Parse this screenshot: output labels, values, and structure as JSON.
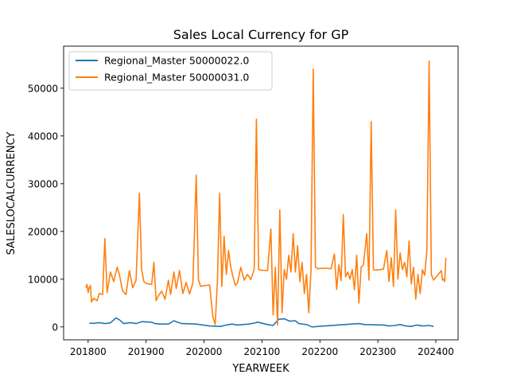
{
  "chart_data": {
    "type": "line",
    "title": "Sales Local Currency for GP",
    "xlabel": "YEARWEEK",
    "ylabel": "SALESLOCALCURRENCY",
    "xlim": [
      201730,
      202420
    ],
    "ylim": [
      -2700,
      58800
    ],
    "x_ticks": [
      201800,
      201900,
      202000,
      202100,
      202200,
      202300,
      202400
    ],
    "y_ticks": [
      0,
      10000,
      20000,
      30000,
      40000,
      50000
    ],
    "grid": false,
    "legend_position": "top-left",
    "series": [
      {
        "name": "Regional_Master 50000022.0",
        "color": "#1f77b4",
        "points": [
          [
            201801,
            800
          ],
          [
            201805,
            750
          ],
          [
            201810,
            900
          ],
          [
            201815,
            700
          ],
          [
            201820,
            850
          ],
          [
            201825,
            1900
          ],
          [
            201828,
            1500
          ],
          [
            201832,
            700
          ],
          [
            201838,
            900
          ],
          [
            201843,
            700
          ],
          [
            201848,
            1100
          ],
          [
            201905,
            1000
          ],
          [
            201908,
            700
          ],
          [
            201912,
            600
          ],
          [
            201920,
            600
          ],
          [
            201925,
            1300
          ],
          [
            201927,
            1100
          ],
          [
            201932,
            700
          ],
          [
            201945,
            600
          ],
          [
            202005,
            200
          ],
          [
            202015,
            100
          ],
          [
            202018,
            300
          ],
          [
            202025,
            600
          ],
          [
            202030,
            400
          ],
          [
            202035,
            500
          ],
          [
            202040,
            600
          ],
          [
            202045,
            800
          ],
          [
            202048,
            1000
          ],
          [
            202105,
            500
          ],
          [
            202110,
            300
          ],
          [
            202115,
            1600
          ],
          [
            202120,
            1700
          ],
          [
            202125,
            1200
          ],
          [
            202130,
            1300
          ],
          [
            202133,
            700
          ],
          [
            202140,
            500
          ],
          [
            202145,
            0
          ],
          [
            202150,
            100
          ],
          [
            202235,
            700
          ],
          [
            202240,
            500
          ],
          [
            202305,
            400
          ],
          [
            202310,
            200
          ],
          [
            202315,
            300
          ],
          [
            202320,
            500
          ],
          [
            202325,
            200
          ],
          [
            202330,
            100
          ],
          [
            202335,
            400
          ],
          [
            202340,
            200
          ],
          [
            202346,
            300
          ],
          [
            202350,
            100
          ]
        ]
      },
      {
        "name": "Regional_Master 50000031.0",
        "color": "#ff7f0e",
        "points": [
          [
            201750,
            8200
          ],
          [
            201751,
            8900
          ],
          [
            201752,
            7200
          ],
          [
            201753,
            8300
          ],
          [
            201801,
            8100
          ],
          [
            201802,
            8700
          ],
          [
            201803,
            5200
          ],
          [
            201805,
            6000
          ],
          [
            201808,
            5500
          ],
          [
            201810,
            7000
          ],
          [
            201813,
            6800
          ],
          [
            201815,
            18500
          ],
          [
            201817,
            7200
          ],
          [
            201820,
            11500
          ],
          [
            201823,
            9500
          ],
          [
            201826,
            12500
          ],
          [
            201828,
            11000
          ],
          [
            201831,
            7500
          ],
          [
            201834,
            6800
          ],
          [
            201837,
            11800
          ],
          [
            201840,
            8200
          ],
          [
            201843,
            9800
          ],
          [
            201846,
            28000
          ],
          [
            201848,
            12000
          ],
          [
            201850,
            9500
          ],
          [
            201852,
            9100
          ],
          [
            201905,
            8900
          ],
          [
            201907,
            13500
          ],
          [
            201909,
            5500
          ],
          [
            201911,
            6500
          ],
          [
            201914,
            7500
          ],
          [
            201917,
            5800
          ],
          [
            201920,
            9800
          ],
          [
            201922,
            6800
          ],
          [
            201925,
            11500
          ],
          [
            201927,
            8000
          ],
          [
            201930,
            11800
          ],
          [
            201933,
            7000
          ],
          [
            201936,
            9300
          ],
          [
            201939,
            6900
          ],
          [
            201942,
            9200
          ],
          [
            201945,
            31800
          ],
          [
            201947,
            9800
          ],
          [
            201949,
            8500
          ],
          [
            201951,
            8600
          ],
          [
            202005,
            8800
          ],
          [
            202008,
            2000
          ],
          [
            202010,
            500
          ],
          [
            202012,
            9500
          ],
          [
            202014,
            28000
          ],
          [
            202016,
            8500
          ],
          [
            202018,
            19000
          ],
          [
            202020,
            11000
          ],
          [
            202022,
            16000
          ],
          [
            202024,
            12500
          ],
          [
            202026,
            10500
          ],
          [
            202028,
            8700
          ],
          [
            202030,
            9200
          ],
          [
            202033,
            12500
          ],
          [
            202036,
            9800
          ],
          [
            202039,
            11000
          ],
          [
            202042,
            9900
          ],
          [
            202045,
            12000
          ],
          [
            202047,
            43500
          ],
          [
            202049,
            12000
          ],
          [
            202051,
            11900
          ],
          [
            202105,
            11800
          ],
          [
            202108,
            20500
          ],
          [
            202110,
            2500
          ],
          [
            202112,
            12500
          ],
          [
            202114,
            400
          ],
          [
            202116,
            24500
          ],
          [
            202118,
            3000
          ],
          [
            202120,
            12000
          ],
          [
            202122,
            10000
          ],
          [
            202124,
            15000
          ],
          [
            202126,
            11500
          ],
          [
            202128,
            19500
          ],
          [
            202130,
            11500
          ],
          [
            202132,
            17000
          ],
          [
            202134,
            9500
          ],
          [
            202136,
            13500
          ],
          [
            202138,
            7000
          ],
          [
            202140,
            11000
          ],
          [
            202142,
            3000
          ],
          [
            202144,
            12000
          ],
          [
            202146,
            54000
          ],
          [
            202148,
            12500
          ],
          [
            202150,
            12200
          ],
          [
            202205,
            12300
          ],
          [
            202210,
            12200
          ],
          [
            202213,
            15300
          ],
          [
            202215,
            7900
          ],
          [
            202217,
            13000
          ],
          [
            202219,
            9700
          ],
          [
            202221,
            23500
          ],
          [
            202223,
            10500
          ],
          [
            202225,
            11500
          ],
          [
            202227,
            10000
          ],
          [
            202229,
            12000
          ],
          [
            202231,
            7800
          ],
          [
            202233,
            15000
          ],
          [
            202235,
            5000
          ],
          [
            202237,
            12500
          ],
          [
            202239,
            13000
          ],
          [
            202242,
            19500
          ],
          [
            202244,
            9800
          ],
          [
            202246,
            43000
          ],
          [
            202248,
            12000
          ],
          [
            202250,
            11900
          ],
          [
            202305,
            12100
          ],
          [
            202308,
            16000
          ],
          [
            202310,
            9500
          ],
          [
            202312,
            14500
          ],
          [
            202314,
            8500
          ],
          [
            202316,
            24500
          ],
          [
            202318,
            10000
          ],
          [
            202320,
            15500
          ],
          [
            202322,
            12000
          ],
          [
            202324,
            13500
          ],
          [
            202326,
            10500
          ],
          [
            202328,
            18000
          ],
          [
            202330,
            9000
          ],
          [
            202332,
            12500
          ],
          [
            202334,
            5800
          ],
          [
            202336,
            11000
          ],
          [
            202338,
            7000
          ],
          [
            202340,
            12000
          ],
          [
            202342,
            10800
          ],
          [
            202344,
            16000
          ],
          [
            202346,
            55700
          ],
          [
            202348,
            11000
          ],
          [
            202350,
            9800
          ],
          [
            202405,
            11800
          ],
          [
            202406,
            9800
          ],
          [
            202407,
            10000
          ],
          [
            202408,
            9500
          ],
          [
            202409,
            14500
          ]
        ]
      }
    ]
  }
}
